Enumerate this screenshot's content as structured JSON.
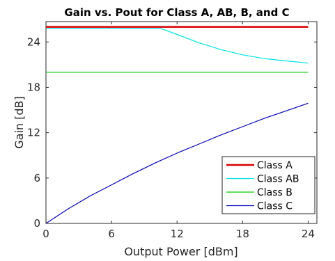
{
  "chart_data": {
    "type": "line",
    "title": "Gain vs. Pout for Class A, AB, B, and C",
    "xlabel": "Output Power [dBm]",
    "ylabel": "Gain [dB]",
    "xlim": [
      0,
      24.8
    ],
    "ylim": [
      0,
      26.7
    ],
    "xticks": [
      "0",
      "6",
      "12",
      "18",
      "24"
    ],
    "yticks": [
      "0",
      "6",
      "12",
      "18",
      "24"
    ],
    "grid": false,
    "legend_position": "bottom-right",
    "series": [
      {
        "name": "Class A",
        "color": "#d90000",
        "x": [
          0,
          24
        ],
        "y": [
          26,
          26
        ]
      },
      {
        "name": "Class AB",
        "color": "#00e0e0",
        "x": [
          0,
          10.5,
          12,
          14,
          16,
          18,
          20,
          22,
          24
        ],
        "y": [
          25.8,
          25.8,
          25.0,
          23.9,
          23.0,
          22.3,
          21.8,
          21.5,
          21.2
        ]
      },
      {
        "name": "Class B",
        "color": "#00cc00",
        "x": [
          0,
          24
        ],
        "y": [
          20,
          20
        ]
      },
      {
        "name": "Class C",
        "color": "#0000b0",
        "x": [
          0,
          2,
          4,
          6,
          8,
          10,
          12,
          14,
          16,
          18,
          20,
          22,
          24
        ],
        "y": [
          0,
          1.9,
          3.6,
          5.1,
          6.6,
          8.0,
          9.3,
          10.5,
          11.7,
          12.8,
          13.9,
          14.9,
          15.9
        ]
      }
    ]
  }
}
